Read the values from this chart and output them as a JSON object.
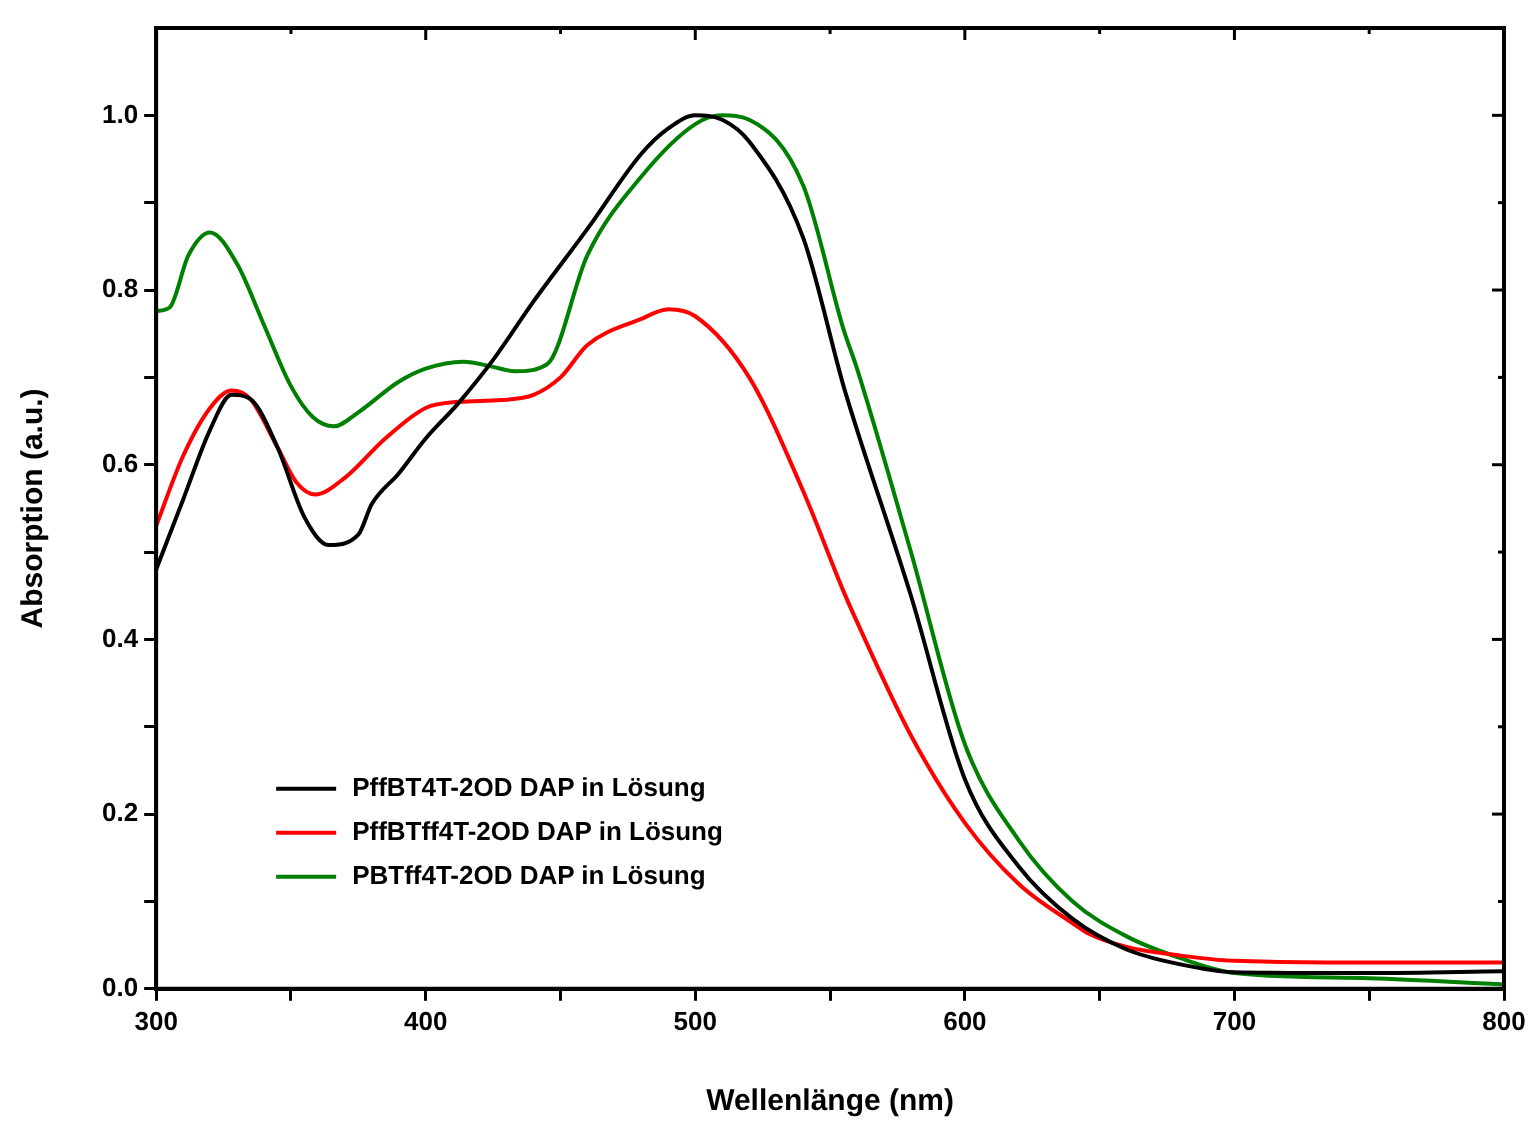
{
  "chart_data": {
    "type": "line",
    "xlabel": "Wellenlänge (nm)",
    "ylabel": "Absorption (a.u.)",
    "xlim": [
      300,
      800
    ],
    "xticks": [
      300,
      {
        "value": 350,
        "label": null
      },
      400,
      {
        "value": 450,
        "label": null
      },
      500,
      {
        "value": 550,
        "label": null
      },
      600,
      {
        "value": 650,
        "label": null
      },
      700,
      {
        "value": 750,
        "label": null
      },
      800
    ],
    "ylim": [
      0,
      1.1
    ],
    "yticks": [
      {
        "value": 0,
        "label": "0.0"
      },
      {
        "value": 0.1,
        "label": null
      },
      0.2,
      {
        "value": 0.3,
        "label": null
      },
      0.4,
      {
        "value": 0.5,
        "label": null
      },
      0.6,
      {
        "value": 0.7,
        "label": null
      },
      0.8,
      {
        "value": 0.9,
        "label": null
      },
      {
        "value": 1,
        "label": "1.0"
      }
    ],
    "grid": false,
    "legend": "bottom left",
    "marker": "none",
    "line_style": "solid",
    "series": [
      {
        "name": "PffBT4T-2OD DAP in Lösung",
        "color": "#000000",
        "x": [
          300,
          310,
          320,
          328,
          335,
          345,
          355,
          364,
          375,
          380,
          390,
          400,
          412,
          425,
          440,
          460,
          480,
          490,
          500,
          510,
          520,
          540,
          555,
          560,
          580,
          600,
          620,
          640,
          660,
          680,
          700,
          750,
          800
        ],
        "values": [
          0.48,
          0.56,
          0.64,
          0.68,
          0.675,
          0.62,
          0.54,
          0.508,
          0.52,
          0.555,
          0.59,
          0.63,
          0.67,
          0.72,
          0.787,
          0.87,
          0.956,
          0.985,
          1.0,
          0.995,
          0.97,
          0.86,
          0.69,
          0.64,
          0.45,
          0.24,
          0.14,
          0.08,
          0.045,
          0.028,
          0.019,
          0.018,
          0.02
        ]
      },
      {
        "name": "PffBTff4T-2OD DAP in Lösung",
        "color": "#ff0000",
        "x": [
          300,
          310,
          320,
          328,
          335,
          345,
          352,
          359,
          370,
          385,
          400,
          412,
          428,
          440,
          450,
          460,
          480,
          490,
          500,
          520,
          540,
          555,
          560,
          580,
          600,
          620,
          640,
          646,
          660,
          680,
          700,
          750,
          800
        ],
        "values": [
          0.53,
          0.61,
          0.665,
          0.685,
          0.675,
          0.62,
          0.58,
          0.566,
          0.585,
          0.63,
          0.665,
          0.672,
          0.674,
          0.68,
          0.7,
          0.737,
          0.767,
          0.778,
          0.77,
          0.7,
          0.57,
          0.455,
          0.42,
          0.29,
          0.19,
          0.12,
          0.075,
          0.063,
          0.048,
          0.038,
          0.032,
          0.03,
          0.03
        ]
      },
      {
        "name": "PBTff4T-2OD DAP in Lösung",
        "color": "#008000",
        "x": [
          300,
          305,
          312,
          320,
          330,
          340,
          350,
          358,
          366,
          375,
          390,
          400,
          414,
          425,
          433,
          445,
          460,
          480,
          500,
          510,
          520,
          540,
          555,
          560,
          580,
          600,
          620,
          640,
          660,
          680,
          700,
          750,
          800
        ],
        "values": [
          0.776,
          0.78,
          0.84,
          0.866,
          0.83,
          0.76,
          0.69,
          0.655,
          0.644,
          0.66,
          0.695,
          0.71,
          0.718,
          0.712,
          0.707,
          0.715,
          0.84,
          0.93,
          0.99,
          1.0,
          0.995,
          0.92,
          0.755,
          0.71,
          0.5,
          0.28,
          0.17,
          0.1,
          0.06,
          0.035,
          0.018,
          0.012,
          0.005
        ]
      }
    ]
  }
}
